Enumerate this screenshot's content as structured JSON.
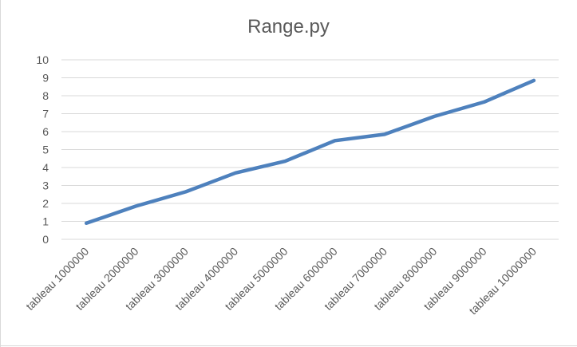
{
  "chart_data": {
    "type": "line",
    "title": "Range.py",
    "xlabel": "",
    "ylabel": "",
    "categories": [
      "tableau 1000000",
      "tableau 2000000",
      "tableau 3000000",
      "tableau 4000000",
      "tableau 5000000",
      "tableau 6000000",
      "tableau 7000000",
      "tableau 8000000",
      "tableau 9000000",
      "tableau 10000000"
    ],
    "series": [
      {
        "values": [
          0.9,
          1.85,
          2.65,
          3.7,
          4.35,
          5.5,
          5.85,
          6.85,
          7.65,
          8.85
        ],
        "color": "#4e81bd"
      }
    ],
    "ylim": [
      0,
      10
    ],
    "yticks": [
      "0",
      "1",
      "2",
      "3",
      "4",
      "5",
      "6",
      "7",
      "8",
      "9",
      "10"
    ],
    "grid": true,
    "legend": "none",
    "gridline_color": "#d9d9d9",
    "text_color": "#595959"
  }
}
